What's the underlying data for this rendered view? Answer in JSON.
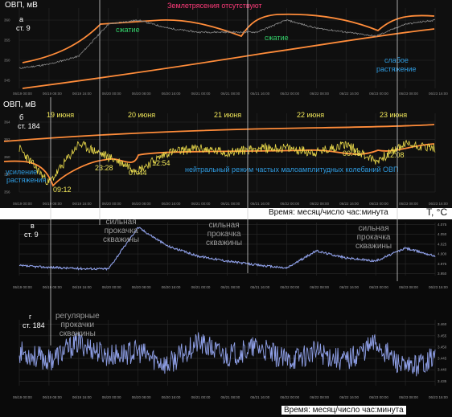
{
  "panel_a": {
    "ylabel": "ОВП, мВ",
    "id": "а",
    "station": "ст. 9",
    "quake_note": "Землетрясения отсутствуют",
    "compress_1": "сжатие",
    "compress_2": "сжатие",
    "weak_ext_1": "слабое",
    "weak_ext_2": "растяжение",
    "yticks": [
      "360",
      "355",
      "350",
      "345"
    ]
  },
  "panel_b": {
    "ylabel": "ОВП, мВ",
    "id": "б",
    "station": "ст. 184",
    "days": [
      "19 июня",
      "20 июня",
      "21 июня",
      "22 июня",
      "23 июня"
    ],
    "times": [
      "09:12",
      "23:28",
      "07:44",
      "12:54",
      "00:48",
      "12:08"
    ],
    "ext_1": "усиление",
    "ext_2": "растяжения",
    "neutral": "нейтральный режим частых малоамплитудных колебаний ОВП",
    "yticks": [
      "364",
      "362",
      "360",
      "358",
      "356"
    ]
  },
  "time_label_1": "Время: месяц/число час:минута",
  "time_label_2": "Время: месяц/число час:минута",
  "temp_unit": "T, °C",
  "panel_c": {
    "id": "в",
    "station": "ст. 9",
    "pump_1": [
      "сильная",
      "прокачка",
      "скважины"
    ],
    "pump_2": [
      "сильная",
      "прокачка",
      "скважины"
    ],
    "pump_3": [
      "сильная",
      "прокачка",
      "скважины"
    ],
    "yticks": [
      "4.075",
      "4.050",
      "4.025",
      "4.000",
      "3.975",
      "3.950"
    ]
  },
  "panel_d": {
    "id": "г",
    "station": "ст. 184",
    "regular": [
      "регулярные",
      "прокачки",
      "скважины"
    ],
    "yticks": [
      "3.460",
      "3.455",
      "3.450",
      "3.445",
      "3.440",
      "3.435"
    ]
  },
  "xticks": [
    "06/19 00:00",
    "06/19 08:00",
    "06/19 16:00",
    "06/20 00:00",
    "06/20 08:00",
    "06/20 16:00",
    "06/21 00:00",
    "06/21 08:00",
    "06/21 16:00",
    "06/22 00:00",
    "06/22 08:00",
    "06/22 16:00",
    "06/23 00:00",
    "06/23 08:00",
    "06/23 16:00"
  ],
  "colors": {
    "background": "#0f0f0f",
    "ovp_a_line": "#8a8a8a",
    "ovp_b_line": "#e8d84a",
    "trend": "#ff8c3a",
    "temp_line": "#8fa0e8",
    "marker": "#cfcfcf"
  },
  "chart_data": [
    {
      "type": "line",
      "title": "Землетрясения отсутствуют",
      "ylabel": "ОВП, мВ",
      "xlabel": "",
      "x": [
        "06/19 00:00",
        "06/19 08:00",
        "06/19 16:00",
        "06/20 00:00",
        "06/20 08:00",
        "06/20 16:00",
        "06/21 00:00",
        "06/21 08:00",
        "06/21 16:00",
        "06/22 00:00",
        "06/22 08:00",
        "06/22 16:00",
        "06/23 00:00",
        "06/23 08:00",
        "06/23 16:00"
      ],
      "series": [
        {
          "values": [
            348,
            349,
            351,
            359,
            360,
            358,
            357,
            357,
            357,
            360,
            358,
            357,
            356,
            359,
            360
          ]
        }
      ],
      "ylim": [
        343,
        363
      ]
    },
    {
      "type": "line",
      "ylabel": "ОВП, мВ",
      "xlabel": "",
      "x": [
        "06/19 00:00",
        "06/19 08:00",
        "06/19 16:00",
        "06/20 00:00",
        "06/20 08:00",
        "06/20 16:00",
        "06/21 00:00",
        "06/21 08:00",
        "06/21 16:00",
        "06/22 00:00",
        "06/22 08:00",
        "06/22 16:00",
        "06/23 00:00",
        "06/23 08:00",
        "06/23 16:00"
      ],
      "series": [
        {
          "values": [
            361,
            357,
            361.5,
            360,
            358.5,
            360.5,
            361,
            360.5,
            361,
            361,
            360.5,
            361.5,
            359.5,
            361.5,
            361
          ]
        }
      ],
      "ylim": [
        356,
        365
      ]
    },
    {
      "type": "line",
      "ylabel": "T, °C",
      "xlabel": "Время: месяц/число час:минута",
      "x": [
        "06/19 00:00",
        "06/19 08:00",
        "06/19 16:00",
        "06/20 00:00",
        "06/20 08:00",
        "06/20 16:00",
        "06/21 00:00",
        "06/21 08:00",
        "06/21 16:00",
        "06/22 00:00",
        "06/22 08:00",
        "06/22 16:00",
        "06/23 00:00",
        "06/23 08:00",
        "06/23 16:00"
      ],
      "series": [
        {
          "values": [
            3.97,
            3.966,
            3.963,
            3.962,
            4.068,
            4.02,
            3.995,
            3.982,
            3.972,
            3.964,
            4.008,
            3.99,
            3.982,
            4.015,
            3.995
          ]
        }
      ],
      "ylim": [
        3.945,
        4.08
      ]
    },
    {
      "type": "line",
      "ylabel": "T, °C",
      "xlabel": "Время: месяц/число час:минута",
      "x": [
        "06/19 00:00",
        "06/19 08:00",
        "06/19 16:00",
        "06/20 00:00",
        "06/20 08:00",
        "06/20 16:00",
        "06/21 00:00",
        "06/21 08:00",
        "06/21 16:00",
        "06/22 00:00",
        "06/22 08:00",
        "06/22 16:00",
        "06/23 00:00",
        "06/23 08:00",
        "06/23 16:00"
      ],
      "series": [
        {
          "values": [
            3.448,
            3.444,
            3.452,
            3.446,
            3.448,
            3.442,
            3.452,
            3.446,
            3.45,
            3.444,
            3.448,
            3.444,
            3.452,
            3.44,
            3.446
          ]
        }
      ],
      "ylim": [
        3.433,
        3.462
      ]
    }
  ]
}
